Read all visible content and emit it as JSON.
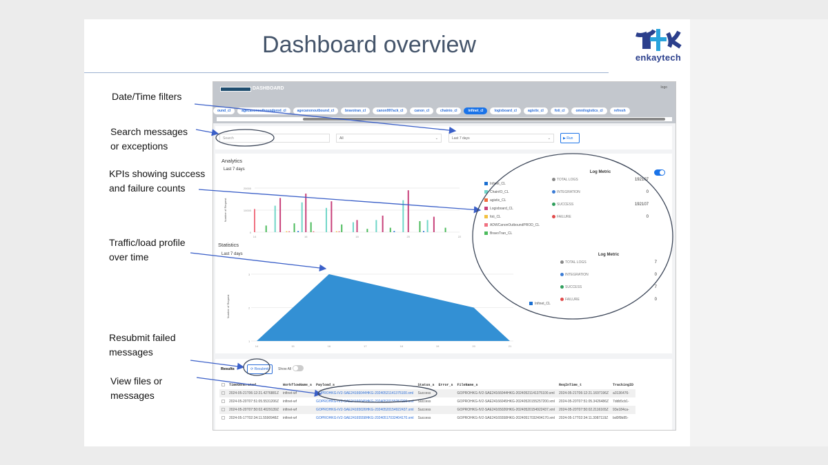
{
  "slide": {
    "title": "Dashboard overview",
    "logo_text": "enkaytech"
  },
  "annotations": [
    {
      "lines": [
        "Date/Time filters"
      ]
    },
    {
      "lines": [
        "Search messages",
        "or exceptions"
      ]
    },
    {
      "lines": [
        "KPIs showing success",
        "and failure counts"
      ]
    },
    {
      "lines": [
        "Traffic/load profile",
        "over time"
      ]
    },
    {
      "lines": [
        "Resubmit failed",
        "messages"
      ]
    },
    {
      "lines": [
        "View files or",
        "messages"
      ]
    }
  ],
  "app": {
    "header_title": "DASHBOARD",
    "header_logo_alt": "logo",
    "chips": [
      "ound_cl",
      "agecanonoutboundprod_cl",
      "agecanonoutbound_cl",
      "bravotran_cl",
      "canon997ack_cl",
      "canon_cl",
      "chainio_cl",
      "infinet_cl",
      "logixboard_cl",
      "agistix_cl",
      "foti_cl",
      "omnilogistics_cl",
      "refresh"
    ],
    "active_chip": "infinet_cl",
    "filters": {
      "search_placeholder": "Search",
      "status_value": "All",
      "range_value": "Last 7 days",
      "run_label": "▶ Run"
    },
    "analytics": {
      "title": "Analytics",
      "subtitle": "Last 7 days"
    },
    "statistics": {
      "title": "Statistics",
      "subtitle": "Last 7 days"
    },
    "legend": [
      {
        "label": "Infinet_CL",
        "color": "#1a6fd1"
      },
      {
        "label": "ChainIO_CL",
        "color": "#6fd6c8"
      },
      {
        "label": "agistix_CL",
        "color": "#f26b3a"
      },
      {
        "label": "Logixboard_CL",
        "color": "#c8407a"
      },
      {
        "label": "foti_CL",
        "color": "#f2c040"
      },
      {
        "label": "ADWCanonOutboundPROD_CL",
        "color": "#f07080"
      },
      {
        "label": "BravoTran_CL",
        "color": "#4cbb5c"
      }
    ],
    "stats_legend": {
      "label": "Infinet_CL",
      "color": "#1a6fd1"
    },
    "log_metric_1": {
      "title": "Log Metric",
      "rows": [
        {
          "label": "TOTAL LOGS",
          "value": "192107",
          "color": "#888"
        },
        {
          "label": "INTEGRATION",
          "value": "0",
          "color": "#3a7bd5"
        },
        {
          "label": "SUCCESS",
          "value": "192107",
          "color": "#2e9e5b"
        },
        {
          "label": "FAILURE",
          "value": "0",
          "color": "#e04a4a"
        }
      ]
    },
    "log_metric_2": {
      "title": "Log Metric",
      "rows": [
        {
          "label": "TOTAL LOGS",
          "value": "7",
          "color": "#888"
        },
        {
          "label": "INTEGRATION",
          "value": "0",
          "color": "#3a7bd5"
        },
        {
          "label": "SUCCESS",
          "value": "7",
          "color": "#2e9e5b"
        },
        {
          "label": "FAILURE",
          "value": "0",
          "color": "#e04a4a"
        }
      ]
    },
    "results": {
      "title": "Results",
      "resubmit_label": "⟳ Resubmit",
      "show_all_label": "Show All",
      "columns": [
        "TimeGenerated",
        "WorkflowName_s",
        "Payload_s",
        "Status_s",
        "Error_s",
        "FileName_s",
        "ReqInTime_t",
        "TrackingID"
      ],
      "rows": [
        [
          "2024-05-21T06:12:21.4276881Z",
          "infinet-wf",
          "GOPROHKG-IV2-SAE24166044HKG-20240521141375100.xml",
          "Success",
          "",
          "GOPROHKG-IV2-SAE24166044HKG-20240521141375100.xml",
          "2024-05-21T06:12:21.1697196Z",
          "a3136476-"
        ],
        [
          "2024-05-20T07:51:05.5531206Z",
          "infinet-wf",
          "GOPROHKG-IV2-SAE24166045HKG-20240520155257200.xml",
          "Success",
          "",
          "GOPROHKG-IV2-SAE24166045HKG-20240520155257200.xml",
          "2024-05-20T07:51:05.3426486Z",
          "7ddb5cb1-"
        ],
        [
          "2024-05-20T07:50:02.4029139Z",
          "infinet-wf",
          "GOPROHKG-IV2-SAE24165026HKG-20240520154922437.xml",
          "Success",
          "",
          "GOPROHKG-IV2-SAE24165026HKG-20240520154922437.xml",
          "2024-05-20T07:50:02.2116165Z",
          "93e184ca-"
        ],
        [
          "2024-05-17T02:34:11.5590948Z",
          "infinet-wf",
          "GOPROHKG-IV2-SAE24165558HKG-20240517032404170.xml",
          "Success",
          "",
          "GOPROHKG-IV2-SAE24165558HKG-20240517032404170.xml",
          "2024-05-17T02:34:11.3087119Z",
          "bd0f9b85-"
        ]
      ]
    }
  },
  "chart_data": [
    {
      "type": "bar",
      "title": "Analytics",
      "ylabel": "Number of Request",
      "xlim": [
        14,
        22
      ],
      "ylim": [
        0,
        20000
      ],
      "xticks": [
        "14",
        "16",
        "18",
        "20",
        "22"
      ],
      "yticks": [
        "0",
        "10000",
        "20000"
      ],
      "bars": [
        {
          "x": 14.0,
          "s": 5,
          "v": 10500
        },
        {
          "x": 14.45,
          "s": 6,
          "v": 3000
        },
        {
          "x": 14.8,
          "s": 1,
          "v": 12000
        },
        {
          "x": 15.0,
          "s": 3,
          "v": 15500
        },
        {
          "x": 15.25,
          "s": 4,
          "v": 400
        },
        {
          "x": 15.35,
          "s": 5,
          "v": 400
        },
        {
          "x": 15.55,
          "s": 6,
          "v": 4000
        },
        {
          "x": 15.7,
          "s": 0,
          "v": 500
        },
        {
          "x": 15.85,
          "s": 1,
          "v": 13500
        },
        {
          "x": 16.0,
          "s": 3,
          "v": 17500
        },
        {
          "x": 16.2,
          "s": 6,
          "v": 4500
        },
        {
          "x": 16.3,
          "s": 5,
          "v": 400
        },
        {
          "x": 16.8,
          "s": 1,
          "v": 11000
        },
        {
          "x": 17.0,
          "s": 3,
          "v": 14000
        },
        {
          "x": 17.2,
          "s": 4,
          "v": 400
        },
        {
          "x": 17.3,
          "s": 5,
          "v": 400
        },
        {
          "x": 17.4,
          "s": 6,
          "v": 3500
        },
        {
          "x": 17.85,
          "s": 1,
          "v": 4500
        },
        {
          "x": 18.0,
          "s": 3,
          "v": 5500
        },
        {
          "x": 18.4,
          "s": 6,
          "v": 1500
        },
        {
          "x": 18.75,
          "s": 1,
          "v": 5500
        },
        {
          "x": 19.0,
          "s": 3,
          "v": 7500
        },
        {
          "x": 19.3,
          "s": 6,
          "v": 2000
        },
        {
          "x": 19.45,
          "s": 0,
          "v": 500
        },
        {
          "x": 19.8,
          "s": 1,
          "v": 14500
        },
        {
          "x": 20.0,
          "s": 3,
          "v": 19000
        },
        {
          "x": 20.45,
          "s": 6,
          "v": 5000
        },
        {
          "x": 20.6,
          "s": 0,
          "v": 500
        },
        {
          "x": 20.75,
          "s": 1,
          "v": 5500
        },
        {
          "x": 21.0,
          "s": 3,
          "v": 7000
        },
        {
          "x": 21.45,
          "s": 6,
          "v": 2000
        }
      ]
    },
    {
      "type": "area",
      "title": "Statistics",
      "ylabel": "Number of Request",
      "xlim": [
        14,
        21
      ],
      "ylim": [
        1,
        3
      ],
      "xticks": [
        "14",
        "15",
        "16",
        "17",
        "18",
        "19",
        "20",
        "21"
      ],
      "yticks": [
        "1",
        "2",
        "3"
      ],
      "x": [
        14,
        16,
        20,
        21
      ],
      "y": [
        1,
        3,
        2,
        1
      ],
      "series_name": "Infinet_CL",
      "color": "#3390d4"
    }
  ]
}
